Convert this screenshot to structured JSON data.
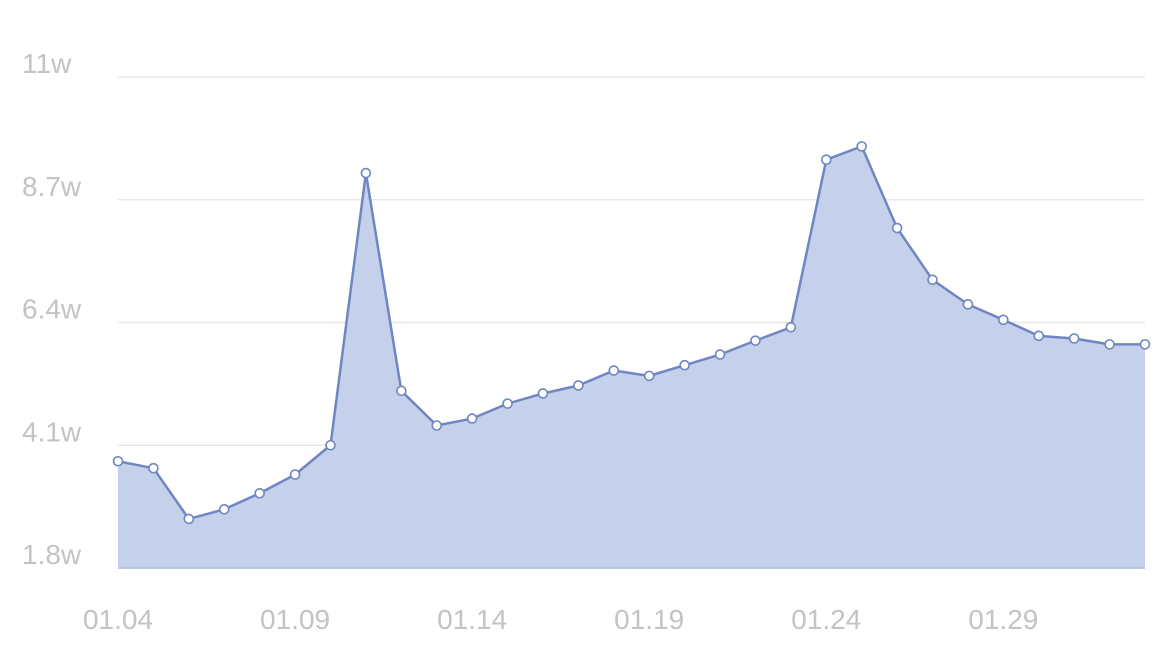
{
  "chart_data": {
    "type": "area",
    "title": "",
    "xlabel": "",
    "ylabel": "",
    "y_unit_suffix": "w",
    "y_ticks": [
      1.8,
      4.1,
      6.4,
      8.7,
      11
    ],
    "y_tick_labels": [
      "1.8w",
      "4.1w",
      "6.4w",
      "8.7w",
      "11w"
    ],
    "ylim": [
      1.8,
      11
    ],
    "x_ticks": [
      "01.04",
      "01.09",
      "01.14",
      "01.19",
      "01.24",
      "01.29"
    ],
    "x": [
      "01.04",
      "01.05",
      "01.06",
      "01.07",
      "01.08",
      "01.09",
      "01.10",
      "01.11",
      "01.12",
      "01.13",
      "01.14",
      "01.15",
      "01.16",
      "01.17",
      "01.18",
      "01.19",
      "01.20",
      "01.21",
      "01.22",
      "01.23",
      "01.24",
      "01.25",
      "01.26",
      "01.27",
      "01.28",
      "01.29",
      "01.30",
      "01.31",
      "02.01",
      "02.02"
    ],
    "series": [
      {
        "values": [
          3.8,
          3.67,
          2.72,
          2.9,
          3.2,
          3.55,
          4.1,
          9.2,
          5.12,
          4.47,
          4.6,
          4.88,
          5.07,
          5.22,
          5.5,
          5.4,
          5.6,
          5.8,
          6.06,
          6.31,
          9.45,
          9.7,
          8.17,
          7.2,
          6.74,
          6.45,
          6.15,
          6.1,
          5.99,
          5.99
        ]
      }
    ],
    "grid": true,
    "legend": "none",
    "colors": {
      "line": "#6f86c2",
      "fill": "#c5d0eb",
      "point_fill": "#ffffff",
      "grid": "#e8e8e8",
      "axis": "#b8c4e2",
      "tick_text": "#c3c3c3"
    }
  }
}
